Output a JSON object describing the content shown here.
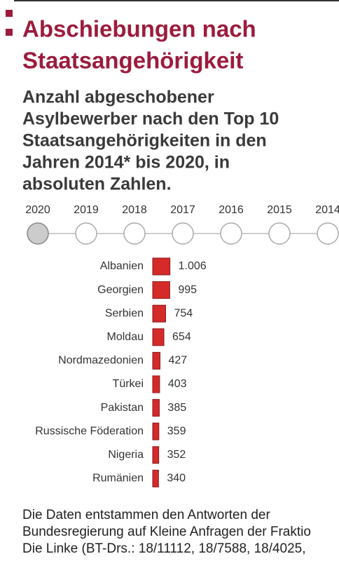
{
  "chart_data": {
    "type": "bar",
    "orientation": "horizontal",
    "title_lines": [
      "Abschiebungen nach",
      "Staatsangehörigkeit"
    ],
    "subtitle_lines": [
      "Anzahl abgeschobener",
      "Asylbewerber nach den Top 10",
      "Staatsangehörigkeiten in den",
      "Jahren 2014* bis 2020, in",
      "absoluten Zahlen."
    ],
    "years": [
      "2020",
      "2019",
      "2018",
      "2017",
      "2016",
      "2015",
      "2014"
    ],
    "categories": [
      "Albanien",
      "Georgien",
      "Serbien",
      "Moldau",
      "Nordmazedonien",
      "Türkei",
      "Pakistan",
      "Russische Föderation",
      "Nigeria",
      "Rumänien"
    ],
    "values": [
      1006,
      995,
      754,
      654,
      427,
      403,
      385,
      359,
      352,
      340
    ],
    "value_labels": [
      "1.006",
      "995",
      "754",
      "654",
      "427",
      "403",
      "385",
      "359",
      "352",
      "340"
    ],
    "color": "#d42a2a",
    "footnote_lines": [
      "Die Daten entstammen den Antworten der",
      "Bundesregierung auf Kleine Anfragen der Fraktio",
      "Die Linke (BT-Drs.: 18/11112, 18/7588, 18/4025,"
    ]
  }
}
